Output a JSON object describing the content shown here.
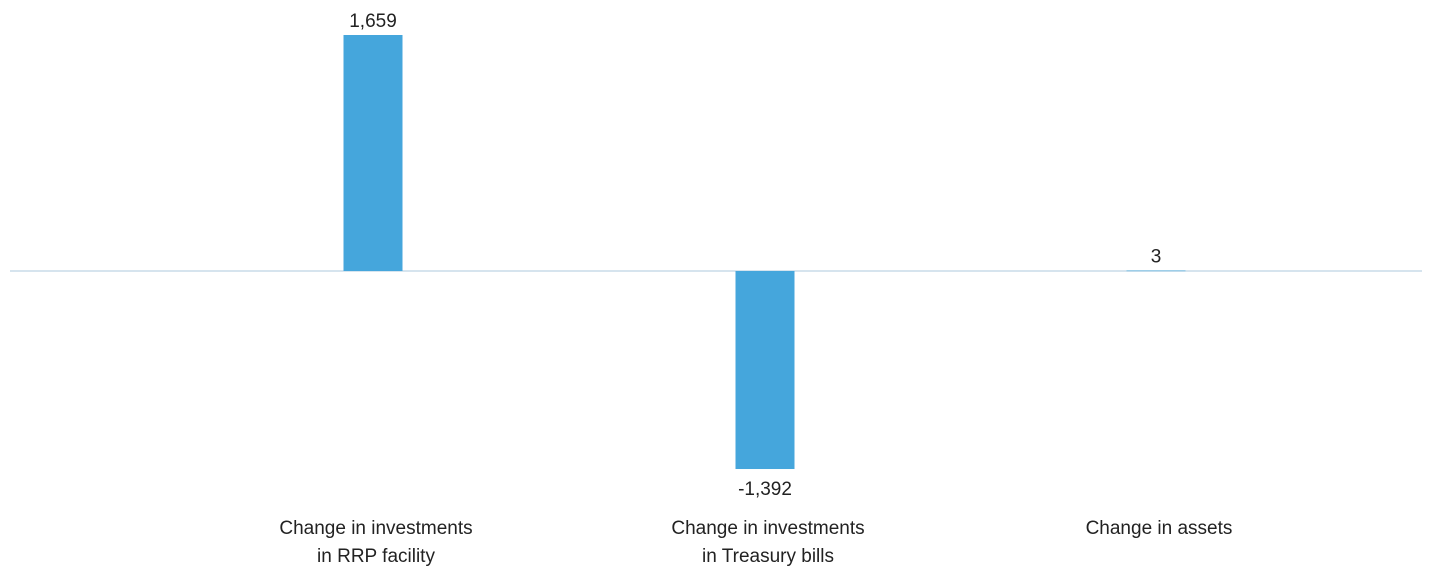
{
  "chart_data": {
    "type": "bar",
    "categories": [
      [
        "Change in investments",
        "in RRP facility"
      ],
      [
        "Change in investments",
        "in Treasury bills"
      ],
      [
        "Change in assets"
      ]
    ],
    "values": [
      1659,
      -1392,
      3
    ],
    "data_labels": [
      "1,659",
      "-1,392",
      "3"
    ],
    "ylim": [
      -1500,
      1750
    ],
    "grid": false,
    "legend": "none",
    "colors": {
      "bar": "#45a6dc",
      "baseline": "#c9dce8",
      "text": "#222222"
    }
  }
}
